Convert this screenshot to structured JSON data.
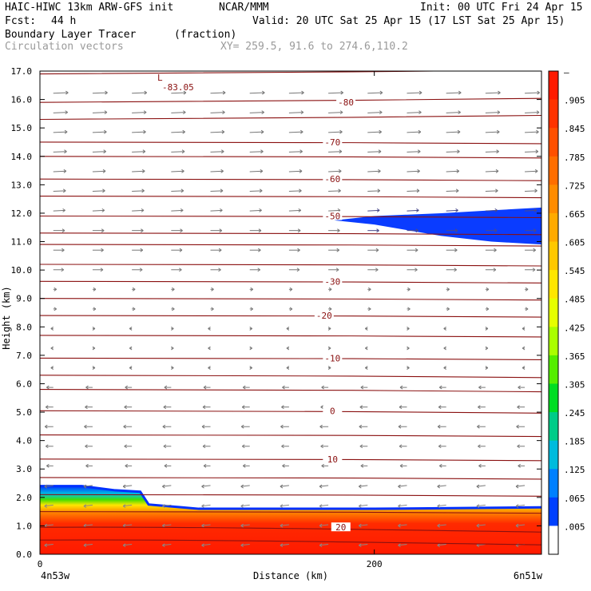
{
  "header": {
    "model": "HAIC-HIWC 13km ARW-GFS init",
    "org": "NCAR/MMM",
    "init": "Init: 00 UTC Fri 24 Apr 15",
    "fcst_label": "Fcst:",
    "fcst_value": "44 h",
    "valid": "Valid: 20 UTC Sat 25 Apr 15 (17 LST Sat 25 Apr 15)",
    "field_name": "Boundary Layer Tracer",
    "field_units": "(fraction)",
    "vector_name": "Circulation vectors",
    "xy_range": "XY= 259.5, 91.6 to 274.6,110.2"
  },
  "chart_data": {
    "type": "area",
    "title": "Boundary Layer Tracer",
    "ylabel": "Height (km)",
    "xlabel": "Distance (km)",
    "ylim": [
      0,
      17
    ],
    "xlim": [
      0,
      300
    ],
    "y_ticks": [
      "0.0",
      "1.0",
      "2.0",
      "3.0",
      "4.0",
      "5.0",
      "6.0",
      "7.0",
      "8.0",
      "9.0",
      "10.0",
      "11.0",
      "12.0",
      "13.0",
      "14.0",
      "15.0",
      "16.0",
      "17.0"
    ],
    "x_ticks": [
      {
        "x": 0,
        "label": "0"
      },
      {
        "x": 200,
        "label": "200"
      }
    ],
    "endpoint_labels": {
      "left": "4n53w",
      "right": "6n51w"
    },
    "colorbar": {
      "labels": [
        "–",
        ".905",
        ".845",
        ".785",
        ".725",
        ".665",
        ".605",
        ".545",
        ".485",
        ".425",
        ".365",
        ".305",
        ".245",
        ".185",
        ".125",
        ".065",
        ".005"
      ],
      "colors": [
        "#ff1a00",
        "#ff3300",
        "#ff5000",
        "#ff6e00",
        "#ff8c00",
        "#ffaa00",
        "#ffc800",
        "#ffe600",
        "#e6ff00",
        "#aaff00",
        "#55ee00",
        "#00dd22",
        "#00cc88",
        "#00bbdd",
        "#0080ff",
        "#0040ff",
        "#ffffff"
      ]
    },
    "boundary_layer_top": [
      {
        "x": 0,
        "h": 2.4
      },
      {
        "x": 25,
        "h": 2.4
      },
      {
        "x": 45,
        "h": 2.25
      },
      {
        "x": 60,
        "h": 2.2
      },
      {
        "x": 65,
        "h": 1.75
      },
      {
        "x": 85,
        "h": 1.65
      },
      {
        "x": 95,
        "h": 1.6
      },
      {
        "x": 120,
        "h": 1.6
      },
      {
        "x": 200,
        "h": 1.6
      },
      {
        "x": 300,
        "h": 1.65
      }
    ],
    "elevated_plume": [
      {
        "x": 176,
        "h": 11.75
      },
      {
        "x": 200,
        "h": 11.6
      },
      {
        "x": 240,
        "h": 11.2
      },
      {
        "x": 270,
        "h": 11.0
      },
      {
        "x": 300,
        "h": 10.9
      }
    ],
    "elevated_plume_top": [
      {
        "x": 176,
        "h": 11.75
      },
      {
        "x": 200,
        "h": 11.9
      },
      {
        "x": 240,
        "h": 12.0
      },
      {
        "x": 270,
        "h": 12.1
      },
      {
        "x": 300,
        "h": 12.2
      }
    ],
    "temperature_contours": [
      {
        "label": "-80",
        "x": 183,
        "h": 15.9
      },
      {
        "label": "-70",
        "x": 175,
        "h": 14.5
      },
      {
        "label": "-60",
        "x": 175,
        "h": 13.2
      },
      {
        "label": "-50",
        "x": 175,
        "h": 11.9
      },
      {
        "label": "-30",
        "x": 175,
        "h": 9.6
      },
      {
        "label": "-20",
        "x": 170,
        "h": 8.4
      },
      {
        "label": "-10",
        "x": 175,
        "h": 6.9
      },
      {
        "label": "0",
        "x": 175,
        "h": 5.05
      },
      {
        "label": "10",
        "x": 175,
        "h": 3.35
      },
      {
        "label": "20",
        "x": 180,
        "h": 0.95
      }
    ],
    "extra_isotherms_h": [
      16.9,
      15.9,
      15.3,
      14.5,
      14.0,
      13.2,
      12.6,
      11.9,
      11.3,
      10.9,
      10.2,
      9.6,
      9.0,
      8.4,
      7.7,
      6.9,
      6.3,
      5.8,
      5.05,
      4.2,
      3.35,
      2.7,
      2.1,
      1.5,
      0.95,
      0.5
    ],
    "low_label": {
      "text": "L",
      "value": "-83.05",
      "x": 75,
      "h": 16.55
    }
  }
}
